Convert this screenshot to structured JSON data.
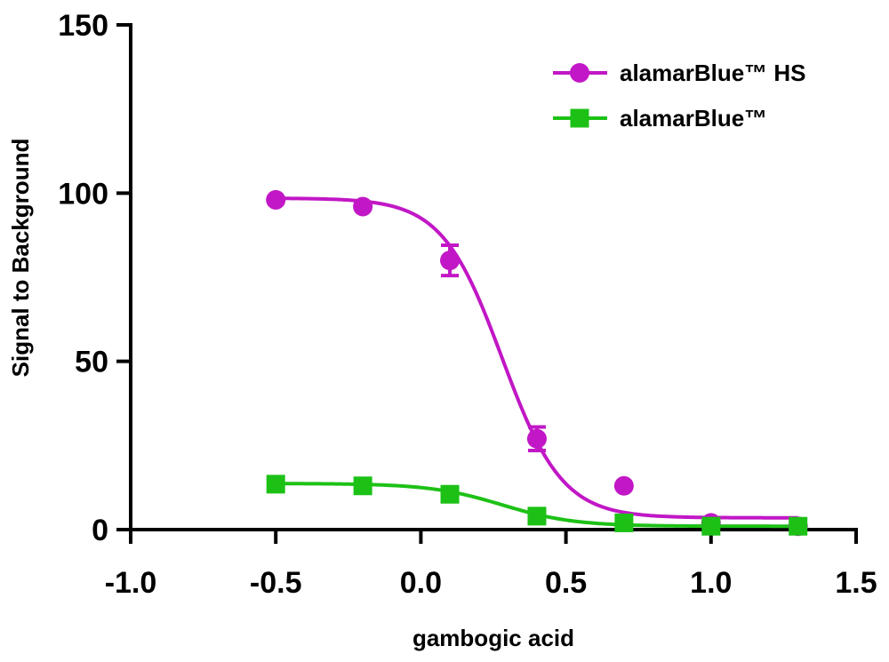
{
  "chart_data": {
    "type": "scatter",
    "title": "",
    "xlabel": "gambogic acid",
    "ylabel": "Signal to Background",
    "xlim": [
      -1.0,
      1.5
    ],
    "ylim": [
      0,
      150
    ],
    "xticks": [
      -1.0,
      -0.5,
      0.0,
      0.5,
      1.0,
      1.5
    ],
    "xtick_labels": [
      "-1.0",
      "-0.5",
      "0.0",
      "0.5",
      "1.0",
      "1.5"
    ],
    "yticks": [
      0,
      50,
      100,
      150
    ],
    "ytick_labels": [
      "0",
      "50",
      "100",
      "150"
    ],
    "grid": false,
    "legend_position": "top-right",
    "series": [
      {
        "name": "alamarBlue™ HS",
        "marker": "circle",
        "color": "#C117C6",
        "x": [
          -0.5,
          -0.2,
          0.1,
          0.4,
          0.7,
          1.0,
          1.3
        ],
        "y": [
          98,
          96,
          80,
          27,
          13,
          2,
          1
        ],
        "error": [
          0,
          0,
          4.5,
          3.5,
          0,
          0,
          0
        ],
        "fit": {
          "top": 98.5,
          "bottom": 3.5,
          "logEC50": 0.28,
          "hill": -4.2
        }
      },
      {
        "name": "alamarBlue™",
        "marker": "square",
        "color": "#1DC116",
        "x": [
          -0.5,
          -0.2,
          0.1,
          0.4,
          0.7,
          1.0,
          1.3
        ],
        "y": [
          13.5,
          13,
          10.5,
          4,
          2,
          1,
          1
        ],
        "error": [
          0,
          0,
          0,
          0,
          0,
          0,
          0
        ],
        "fit": {
          "top": 13.7,
          "bottom": 1.0,
          "logEC50": 0.28,
          "hill": -3.5
        }
      }
    ]
  }
}
